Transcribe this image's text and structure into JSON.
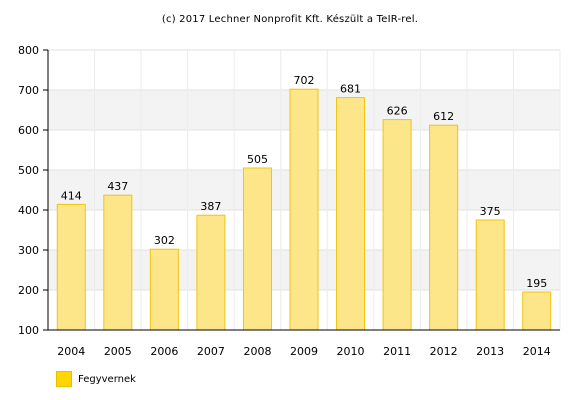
{
  "copyright": "(c) 2017 Lechner Nonprofit Kft. Készült a TeIR-rel.",
  "chart_data": {
    "type": "bar",
    "categories": [
      "2004",
      "2005",
      "2006",
      "2007",
      "2008",
      "2009",
      "2010",
      "2011",
      "2012",
      "2013",
      "2014"
    ],
    "series": [
      {
        "name": "Fegyvernek",
        "values": [
          414,
          437,
          302,
          387,
          505,
          702,
          681,
          626,
          612,
          375,
          195
        ]
      }
    ],
    "ylim": [
      100,
      800
    ],
    "yticks": [
      100,
      200,
      300,
      400,
      500,
      600,
      700,
      800
    ],
    "grid": true,
    "data_labels": true,
    "legend_position": "bottom-left",
    "colors": {
      "bar_fill": "#fde68a",
      "bar_stroke": "#f1c40f",
      "legend_fill": "#ffd700",
      "band": "#f3f3f3"
    }
  }
}
